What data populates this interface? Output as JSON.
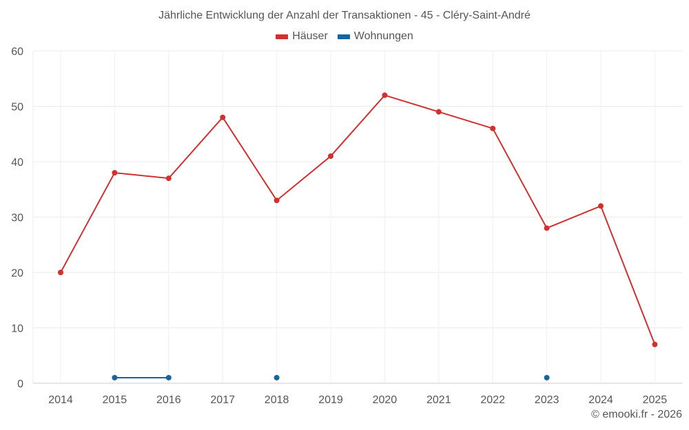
{
  "chart_data": {
    "type": "line",
    "title": "Jährliche Entwicklung der Anzahl der Transaktionen - 45 - Cléry-Saint-André",
    "xlabel": "",
    "ylabel": "",
    "x": [
      "2014",
      "2015",
      "2016",
      "2017",
      "2018",
      "2019",
      "2020",
      "2021",
      "2022",
      "2023",
      "2024",
      "2025"
    ],
    "ylim": [
      0,
      60
    ],
    "yticks": [
      "0",
      "10",
      "20",
      "30",
      "40",
      "50",
      "60"
    ],
    "grid": true,
    "legend_position": "top-center",
    "series": [
      {
        "name": "Häuser",
        "color": "#d32f2f",
        "values": [
          20,
          38,
          37,
          48,
          33,
          41,
          52,
          49,
          46,
          28,
          32,
          7
        ]
      },
      {
        "name": "Wohnungen",
        "color": "#1565a0",
        "values": [
          null,
          1,
          1,
          null,
          1,
          null,
          null,
          null,
          null,
          1,
          null,
          null
        ]
      }
    ]
  },
  "footer": {
    "copyright": "© emooki.fr - 2026"
  }
}
